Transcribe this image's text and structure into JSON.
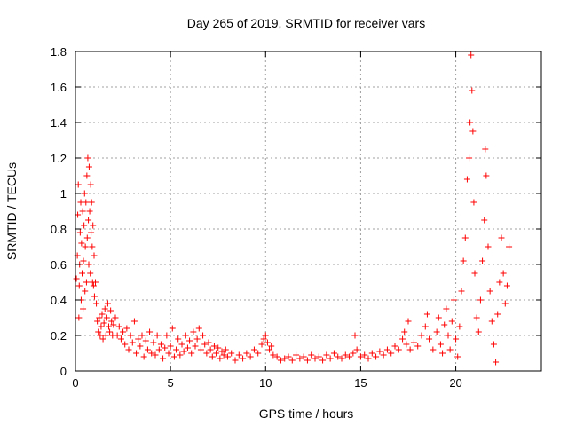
{
  "chart_data": {
    "type": "scatter",
    "title": "Day 265 of 2019, SRMTID for receiver vars",
    "xlabel": "GPS time / hours",
    "ylabel": "SRMTID / TECUs",
    "xlim": [
      0,
      24.5
    ],
    "ylim": [
      0,
      1.8
    ],
    "xticks": [
      0,
      5,
      10,
      15,
      20
    ],
    "yticks": [
      0,
      0.2,
      0.4,
      0.6,
      0.8,
      1,
      1.2,
      1.4,
      1.6,
      1.8
    ],
    "xtick_labels": [
      "0",
      "5",
      "10",
      "15",
      "20"
    ],
    "ytick_labels": [
      "0",
      "0.2",
      "0.4",
      "0.6",
      "0.8",
      "1",
      "1.2",
      "1.4",
      "1.6",
      "1.8"
    ],
    "grid": true,
    "marker": "+",
    "color": "#ff0000",
    "series": [
      {
        "name": "SRMTID",
        "points": [
          [
            0.05,
            0.52
          ],
          [
            0.1,
            0.65
          ],
          [
            0.12,
            0.88
          ],
          [
            0.15,
            1.05
          ],
          [
            0.18,
            0.3
          ],
          [
            0.2,
            0.48
          ],
          [
            0.22,
            0.6
          ],
          [
            0.25,
            0.78
          ],
          [
            0.28,
            0.95
          ],
          [
            0.3,
            0.4
          ],
          [
            0.32,
            0.72
          ],
          [
            0.35,
            0.55
          ],
          [
            0.38,
            0.9
          ],
          [
            0.4,
            0.35
          ],
          [
            0.42,
            0.62
          ],
          [
            0.45,
            0.82
          ],
          [
            0.48,
            1.0
          ],
          [
            0.5,
            0.45
          ],
          [
            0.52,
            0.7
          ],
          [
            0.55,
            0.95
          ],
          [
            0.58,
            0.5
          ],
          [
            0.6,
            1.1
          ],
          [
            0.62,
            0.75
          ],
          [
            0.65,
            1.2
          ],
          [
            0.68,
            0.85
          ],
          [
            0.7,
            0.6
          ],
          [
            0.72,
            1.15
          ],
          [
            0.75,
            0.9
          ],
          [
            0.78,
            0.55
          ],
          [
            0.8,
            1.05
          ],
          [
            0.82,
            0.78
          ],
          [
            0.85,
            0.95
          ],
          [
            0.88,
            0.7
          ],
          [
            0.9,
            0.5
          ],
          [
            0.92,
            0.82
          ],
          [
            0.95,
            0.48
          ],
          [
            0.98,
            0.65
          ],
          [
            1.0,
            0.42
          ],
          [
            1.05,
            0.5
          ],
          [
            1.1,
            0.38
          ],
          [
            1.15,
            0.28
          ],
          [
            1.2,
            0.22
          ],
          [
            1.25,
            0.3
          ],
          [
            1.3,
            0.2
          ],
          [
            1.35,
            0.25
          ],
          [
            1.4,
            0.32
          ],
          [
            1.45,
            0.18
          ],
          [
            1.5,
            0.27
          ],
          [
            1.55,
            0.35
          ],
          [
            1.6,
            0.2
          ],
          [
            1.65,
            0.3
          ],
          [
            1.7,
            0.38
          ],
          [
            1.75,
            0.25
          ],
          [
            1.8,
            0.22
          ],
          [
            1.85,
            0.34
          ],
          [
            1.9,
            0.28
          ],
          [
            1.95,
            0.2
          ],
          [
            2.0,
            0.26
          ],
          [
            2.1,
            0.3
          ],
          [
            2.2,
            0.2
          ],
          [
            2.3,
            0.25
          ],
          [
            2.4,
            0.18
          ],
          [
            2.5,
            0.22
          ],
          [
            2.6,
            0.15
          ],
          [
            2.7,
            0.24
          ],
          [
            2.8,
            0.12
          ],
          [
            2.9,
            0.2
          ],
          [
            3.0,
            0.16
          ],
          [
            3.1,
            0.28
          ],
          [
            3.2,
            0.1
          ],
          [
            3.3,
            0.18
          ],
          [
            3.4,
            0.14
          ],
          [
            3.5,
            0.2
          ],
          [
            3.6,
            0.08
          ],
          [
            3.7,
            0.17
          ],
          [
            3.8,
            0.12
          ],
          [
            3.9,
            0.22
          ],
          [
            4.0,
            0.1
          ],
          [
            4.1,
            0.16
          ],
          [
            4.2,
            0.09
          ],
          [
            4.3,
            0.2
          ],
          [
            4.4,
            0.12
          ],
          [
            4.5,
            0.15
          ],
          [
            4.6,
            0.07
          ],
          [
            4.7,
            0.13
          ],
          [
            4.8,
            0.2
          ],
          [
            4.9,
            0.1
          ],
          [
            5.0,
            0.14
          ],
          [
            5.1,
            0.24
          ],
          [
            5.2,
            0.08
          ],
          [
            5.3,
            0.12
          ],
          [
            5.4,
            0.18
          ],
          [
            5.5,
            0.09
          ],
          [
            5.6,
            0.15
          ],
          [
            5.7,
            0.11
          ],
          [
            5.8,
            0.2
          ],
          [
            5.9,
            0.13
          ],
          [
            6.0,
            0.17
          ],
          [
            6.1,
            0.1
          ],
          [
            6.2,
            0.22
          ],
          [
            6.3,
            0.14
          ],
          [
            6.4,
            0.18
          ],
          [
            6.5,
            0.24
          ],
          [
            6.6,
            0.12
          ],
          [
            6.7,
            0.2
          ],
          [
            6.8,
            0.15
          ],
          [
            6.9,
            0.1
          ],
          [
            7.0,
            0.16
          ],
          [
            7.1,
            0.12
          ],
          [
            7.2,
            0.08
          ],
          [
            7.3,
            0.14
          ],
          [
            7.4,
            0.1
          ],
          [
            7.5,
            0.13
          ],
          [
            7.6,
            0.07
          ],
          [
            7.7,
            0.11
          ],
          [
            7.8,
            0.09
          ],
          [
            7.9,
            0.12
          ],
          [
            8.0,
            0.08
          ],
          [
            8.2,
            0.1
          ],
          [
            8.4,
            0.06
          ],
          [
            8.6,
            0.09
          ],
          [
            8.8,
            0.07
          ],
          [
            9.0,
            0.1
          ],
          [
            9.2,
            0.08
          ],
          [
            9.4,
            0.12
          ],
          [
            9.6,
            0.1
          ],
          [
            9.8,
            0.15
          ],
          [
            9.9,
            0.18
          ],
          [
            10.0,
            0.2
          ],
          [
            10.1,
            0.16
          ],
          [
            10.2,
            0.12
          ],
          [
            10.3,
            0.14
          ],
          [
            10.4,
            0.09
          ],
          [
            10.6,
            0.08
          ],
          [
            10.8,
            0.06
          ],
          [
            11.0,
            0.07
          ],
          [
            11.2,
            0.08
          ],
          [
            11.4,
            0.06
          ],
          [
            11.6,
            0.09
          ],
          [
            11.8,
            0.07
          ],
          [
            12.0,
            0.08
          ],
          [
            12.2,
            0.06
          ],
          [
            12.4,
            0.09
          ],
          [
            12.6,
            0.07
          ],
          [
            12.8,
            0.08
          ],
          [
            13.0,
            0.06
          ],
          [
            13.2,
            0.09
          ],
          [
            13.4,
            0.07
          ],
          [
            13.6,
            0.1
          ],
          [
            13.8,
            0.08
          ],
          [
            14.0,
            0.07
          ],
          [
            14.2,
            0.09
          ],
          [
            14.4,
            0.08
          ],
          [
            14.6,
            0.1
          ],
          [
            14.7,
            0.2
          ],
          [
            14.8,
            0.12
          ],
          [
            15.0,
            0.08
          ],
          [
            15.2,
            0.09
          ],
          [
            15.4,
            0.07
          ],
          [
            15.6,
            0.1
          ],
          [
            15.8,
            0.08
          ],
          [
            16.0,
            0.11
          ],
          [
            16.2,
            0.09
          ],
          [
            16.4,
            0.12
          ],
          [
            16.6,
            0.1
          ],
          [
            16.8,
            0.14
          ],
          [
            17.0,
            0.12
          ],
          [
            17.2,
            0.18
          ],
          [
            17.3,
            0.22
          ],
          [
            17.4,
            0.15
          ],
          [
            17.5,
            0.28
          ],
          [
            17.6,
            0.12
          ],
          [
            17.8,
            0.16
          ],
          [
            18.0,
            0.14
          ],
          [
            18.2,
            0.2
          ],
          [
            18.4,
            0.25
          ],
          [
            18.5,
            0.32
          ],
          [
            18.6,
            0.18
          ],
          [
            18.8,
            0.12
          ],
          [
            19.0,
            0.22
          ],
          [
            19.1,
            0.3
          ],
          [
            19.2,
            0.15
          ],
          [
            19.3,
            0.1
          ],
          [
            19.4,
            0.26
          ],
          [
            19.5,
            0.35
          ],
          [
            19.6,
            0.2
          ],
          [
            19.7,
            0.12
          ],
          [
            19.8,
            0.28
          ],
          [
            19.9,
            0.4
          ],
          [
            20.0,
            0.18
          ],
          [
            20.1,
            0.08
          ],
          [
            20.2,
            0.25
          ],
          [
            20.3,
            0.45
          ],
          [
            20.4,
            0.62
          ],
          [
            20.5,
            0.75
          ],
          [
            20.6,
            1.08
          ],
          [
            20.7,
            1.2
          ],
          [
            20.75,
            1.4
          ],
          [
            20.8,
            1.78
          ],
          [
            20.85,
            1.58
          ],
          [
            20.9,
            1.35
          ],
          [
            20.95,
            0.95
          ],
          [
            21.0,
            0.55
          ],
          [
            21.1,
            0.3
          ],
          [
            21.2,
            0.22
          ],
          [
            21.3,
            0.4
          ],
          [
            21.4,
            0.62
          ],
          [
            21.5,
            0.85
          ],
          [
            21.55,
            1.25
          ],
          [
            21.6,
            1.1
          ],
          [
            21.7,
            0.7
          ],
          [
            21.8,
            0.45
          ],
          [
            21.9,
            0.28
          ],
          [
            22.0,
            0.15
          ],
          [
            22.1,
            0.05
          ],
          [
            22.2,
            0.32
          ],
          [
            22.3,
            0.5
          ],
          [
            22.4,
            0.75
          ],
          [
            22.5,
            0.55
          ],
          [
            22.6,
            0.38
          ],
          [
            22.7,
            0.48
          ],
          [
            22.8,
            0.7
          ]
        ]
      }
    ]
  }
}
